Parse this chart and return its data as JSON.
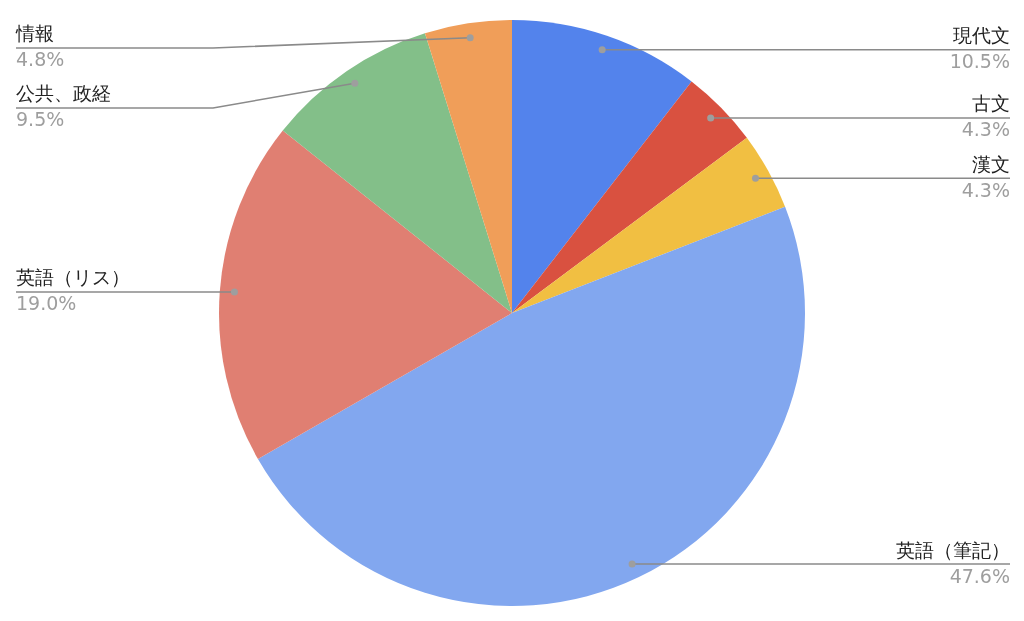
{
  "chart_data": {
    "type": "pie",
    "categories": [
      "現代文",
      "古文",
      "漢文",
      "英語（筆記）",
      "英語（リス）",
      "公共、政経",
      "情報"
    ],
    "values": [
      10.5,
      4.3,
      4.3,
      47.6,
      19.0,
      9.5,
      4.8
    ],
    "colors": [
      "#5383ec",
      "#d95140",
      "#f1bf42",
      "#82a7ef",
      "#e07f72",
      "#83bf89",
      "#f09e59"
    ],
    "value_labels": [
      "10.5%",
      "4.3%",
      "4.3%",
      "47.6%",
      "19.0%",
      "9.5%",
      "4.8%"
    ],
    "legend": false
  }
}
